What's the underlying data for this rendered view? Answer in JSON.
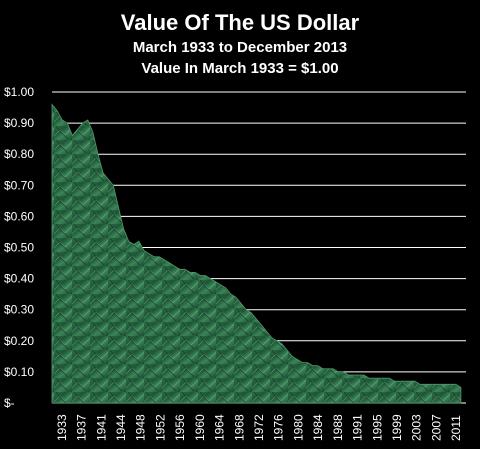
{
  "chart_data": {
    "type": "area",
    "title": "Value Of The US Dollar",
    "subtitle_lines": [
      "March 1933 to December 2013",
      "Value In March 1933 = $1.00"
    ],
    "xlabel": "",
    "ylabel": "",
    "x_tick_labels": [
      "1933",
      "1937",
      "1941",
      "1944",
      "1948",
      "1952",
      "1956",
      "1960",
      "1964",
      "1968",
      "1972",
      "1976",
      "1980",
      "1984",
      "1988",
      "1991",
      "1995",
      "1999",
      "2003",
      "2007",
      "2011"
    ],
    "y_tick_labels": [
      "$-",
      "$0.10",
      "$0.20",
      "$0.30",
      "$0.40",
      "$0.50",
      "$0.60",
      "$0.70",
      "$0.80",
      "$0.90",
      "$1.00"
    ],
    "ylim": [
      0,
      1.0
    ],
    "xlim": [
      1933,
      2014
    ],
    "grid": true,
    "series": [
      {
        "x": [
          1933,
          1934,
          1935,
          1936,
          1937,
          1938,
          1939,
          1940,
          1941,
          1942,
          1943,
          1944,
          1945,
          1946,
          1947,
          1948,
          1949,
          1950,
          1951,
          1952,
          1953,
          1954,
          1955,
          1956,
          1957,
          1958,
          1959,
          1960,
          1961,
          1962,
          1963,
          1964,
          1965,
          1966,
          1967,
          1968,
          1969,
          1970,
          1971,
          1972,
          1973,
          1974,
          1975,
          1976,
          1977,
          1978,
          1979,
          1980,
          1981,
          1982,
          1983,
          1984,
          1985,
          1986,
          1987,
          1988,
          1989,
          1990,
          1991,
          1992,
          1993,
          1994,
          1995,
          1996,
          1997,
          1998,
          1999,
          2000,
          2001,
          2002,
          2003,
          2004,
          2005,
          2006,
          2007,
          2008,
          2009,
          2010,
          2011,
          2012,
          2013
        ],
        "values": [
          0.96,
          0.94,
          0.91,
          0.9,
          0.86,
          0.88,
          0.9,
          0.91,
          0.87,
          0.8,
          0.74,
          0.72,
          0.7,
          0.63,
          0.56,
          0.52,
          0.51,
          0.52,
          0.49,
          0.48,
          0.47,
          0.47,
          0.46,
          0.45,
          0.44,
          0.43,
          0.43,
          0.42,
          0.42,
          0.41,
          0.41,
          0.4,
          0.39,
          0.38,
          0.37,
          0.35,
          0.34,
          0.32,
          0.3,
          0.29,
          0.27,
          0.25,
          0.23,
          0.21,
          0.2,
          0.19,
          0.17,
          0.15,
          0.14,
          0.13,
          0.13,
          0.12,
          0.12,
          0.11,
          0.11,
          0.11,
          0.1,
          0.1,
          0.09,
          0.09,
          0.09,
          0.09,
          0.08,
          0.08,
          0.08,
          0.08,
          0.08,
          0.07,
          0.07,
          0.07,
          0.07,
          0.07,
          0.06,
          0.06,
          0.06,
          0.06,
          0.06,
          0.06,
          0.06,
          0.06,
          0.05
        ]
      }
    ],
    "colors": {
      "background": "#000000",
      "area_dark": "#0f3a22",
      "area_light": "#3e8a5e",
      "text": "#ffffff",
      "grid": "#ffffff"
    }
  }
}
